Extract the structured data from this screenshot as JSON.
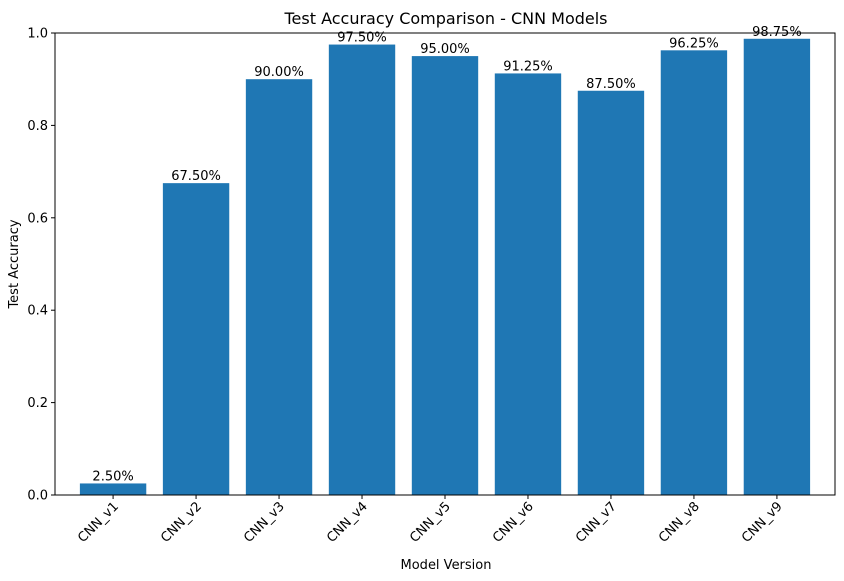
{
  "chart_data": {
    "type": "bar",
    "title": "Test Accuracy Comparison - CNN Models",
    "xlabel": "Model Version",
    "ylabel": "Test Accuracy",
    "categories": [
      "CNN_v1",
      "CNN_v2",
      "CNN_v3",
      "CNN_v4",
      "CNN_v5",
      "CNN_v6",
      "CNN_v7",
      "CNN_v8",
      "CNN_v9"
    ],
    "values": [
      0.025,
      0.675,
      0.9,
      0.975,
      0.95,
      0.9125,
      0.875,
      0.9625,
      0.9875
    ],
    "data_labels": [
      "2.50%",
      "67.50%",
      "90.00%",
      "97.50%",
      "95.00%",
      "91.25%",
      "87.50%",
      "96.25%",
      "98.75%"
    ],
    "ylim": [
      0,
      1.0
    ],
    "yticks": [
      0.0,
      0.2,
      0.4,
      0.6,
      0.8,
      1.0
    ],
    "ytick_labels": [
      "0.0",
      "0.2",
      "0.4",
      "0.6",
      "0.8",
      "1.0"
    ],
    "xtick_rotation": 45,
    "grid": false,
    "bar_color": "#1f77b4"
  }
}
